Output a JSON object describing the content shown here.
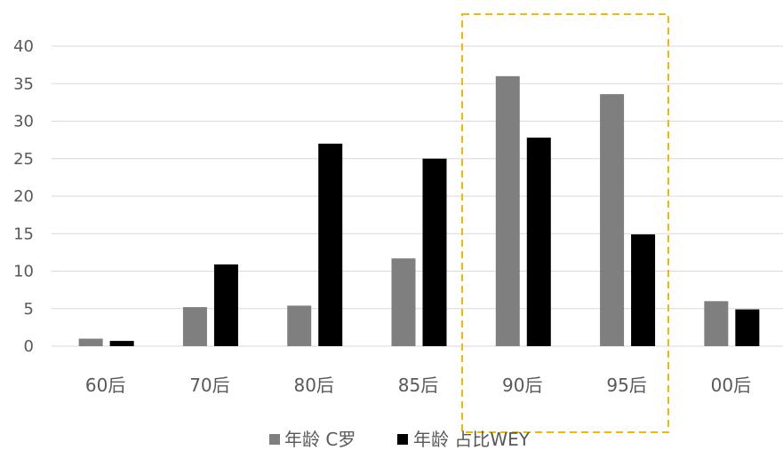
{
  "chart_data": {
    "type": "bar",
    "title": "",
    "xlabel": "",
    "ylabel": "",
    "categories": [
      "60后",
      "70后",
      "80后",
      "85后",
      "90后",
      "95后",
      "00后"
    ],
    "series": [
      {
        "name": "年龄 C罗",
        "color": "#7f7f7f",
        "values": [
          1.0,
          5.2,
          5.4,
          11.7,
          36.0,
          33.6,
          6.0
        ]
      },
      {
        "name": "年龄 占比WEY",
        "color": "#000000",
        "values": [
          0.7,
          10.9,
          27.0,
          25.0,
          27.8,
          14.9,
          4.9
        ]
      }
    ],
    "ylim": [
      0,
      40
    ],
    "yticks": [
      0,
      5,
      10,
      15,
      20,
      25,
      30,
      35,
      40
    ],
    "grid": true,
    "legend_position": "bottom",
    "highlight_color": "#f5b800"
  }
}
